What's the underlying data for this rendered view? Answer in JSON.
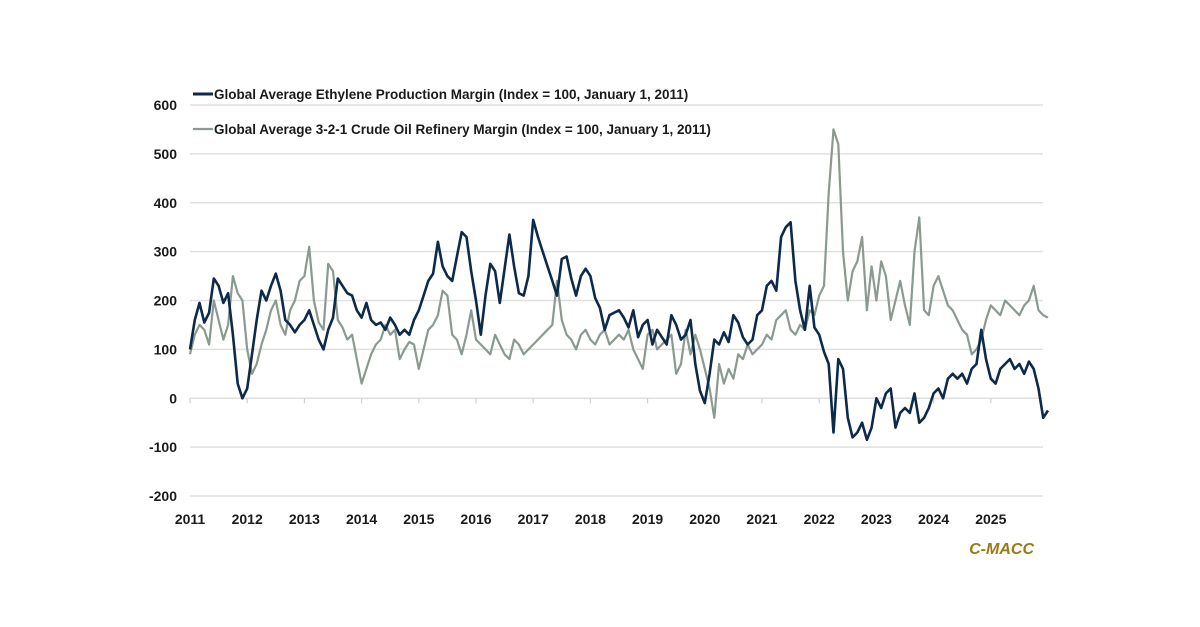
{
  "chart_data": {
    "type": "line",
    "title": "",
    "xlabel": "",
    "ylabel": "",
    "ylim": [
      -200,
      600
    ],
    "yticks": [
      600,
      500,
      400,
      300,
      200,
      100,
      0,
      -100,
      -200
    ],
    "xlim": [
      2011,
      2026
    ],
    "xticks": [
      "2011",
      "2012",
      "2013",
      "2014",
      "2015",
      "2016",
      "2017",
      "2018",
      "2019",
      "2020",
      "2021",
      "2022",
      "2023",
      "2024",
      "2025"
    ],
    "grid": true,
    "legend_position": "top-left",
    "x_start": 2011,
    "points_per_year": 12,
    "series": [
      {
        "name": "Global Average Ethylene Production Margin (Index = 100, January 1, 2011)",
        "color": "#0d2a4a",
        "values": [
          100,
          160,
          195,
          155,
          175,
          245,
          230,
          195,
          215,
          130,
          30,
          0,
          20,
          90,
          160,
          220,
          200,
          230,
          255,
          220,
          160,
          150,
          135,
          150,
          160,
          180,
          150,
          120,
          100,
          140,
          165,
          245,
          230,
          215,
          210,
          180,
          165,
          195,
          160,
          150,
          155,
          140,
          165,
          150,
          130,
          140,
          130,
          160,
          180,
          210,
          240,
          255,
          320,
          270,
          250,
          240,
          290,
          340,
          330,
          260,
          200,
          130,
          210,
          275,
          260,
          195,
          265,
          335,
          270,
          215,
          210,
          250,
          365,
          330,
          300,
          270,
          240,
          210,
          285,
          290,
          245,
          210,
          250,
          265,
          250,
          205,
          185,
          140,
          170,
          175,
          180,
          165,
          145,
          180,
          125,
          150,
          160,
          110,
          140,
          125,
          110,
          170,
          150,
          120,
          130,
          160,
          70,
          15,
          -10,
          50,
          120,
          110,
          135,
          115,
          170,
          155,
          125,
          110,
          120,
          170,
          180,
          230,
          240,
          220,
          330,
          350,
          360,
          240,
          180,
          140,
          230,
          145,
          130,
          95,
          70,
          -70,
          80,
          60,
          -40,
          -80,
          -70,
          -50,
          -85,
          -60,
          0,
          -20,
          10,
          20,
          -60,
          -30,
          -20,
          -30,
          10,
          -50,
          -40,
          -20,
          10,
          20,
          0,
          40,
          50,
          40,
          50,
          30,
          60,
          70,
          140,
          80,
          40,
          30,
          60,
          70,
          80,
          60,
          70,
          50,
          75,
          60,
          20,
          -40,
          -25
        ]
      },
      {
        "name": "Global Average 3-2-1 Crude Oil Refinery Margin (Index = 100, January 1, 2011)",
        "color": "#8a9a8e",
        "values": [
          90,
          130,
          150,
          140,
          110,
          200,
          160,
          120,
          150,
          250,
          215,
          200,
          100,
          50,
          70,
          110,
          140,
          180,
          200,
          150,
          130,
          180,
          200,
          240,
          250,
          310,
          200,
          155,
          140,
          275,
          260,
          160,
          145,
          120,
          130,
          80,
          30,
          60,
          90,
          110,
          120,
          150,
          130,
          140,
          80,
          100,
          115,
          110,
          60,
          100,
          140,
          150,
          170,
          220,
          210,
          130,
          120,
          90,
          130,
          180,
          120,
          110,
          100,
          90,
          130,
          110,
          90,
          80,
          120,
          110,
          90,
          100,
          110,
          120,
          130,
          140,
          150,
          240,
          160,
          130,
          120,
          100,
          130,
          140,
          120,
          110,
          130,
          140,
          110,
          120,
          130,
          120,
          140,
          100,
          80,
          60,
          130,
          140,
          100,
          110,
          120,
          130,
          50,
          70,
          140,
          90,
          130,
          100,
          60,
          20,
          -40,
          70,
          30,
          60,
          40,
          90,
          80,
          110,
          90,
          100,
          110,
          130,
          120,
          160,
          170,
          180,
          140,
          130,
          150,
          140,
          180,
          170,
          210,
          230,
          420,
          550,
          520,
          300,
          200,
          260,
          280,
          330,
          180,
          270,
          200,
          280,
          250,
          160,
          200,
          240,
          190,
          150,
          300,
          370,
          180,
          170,
          230,
          250,
          220,
          190,
          180,
          160,
          140,
          130,
          90,
          100,
          120,
          160,
          190,
          180,
          170,
          200,
          190,
          180,
          170,
          190,
          200,
          230,
          180,
          170,
          165
        ]
      }
    ]
  },
  "brand": "C-MACC"
}
